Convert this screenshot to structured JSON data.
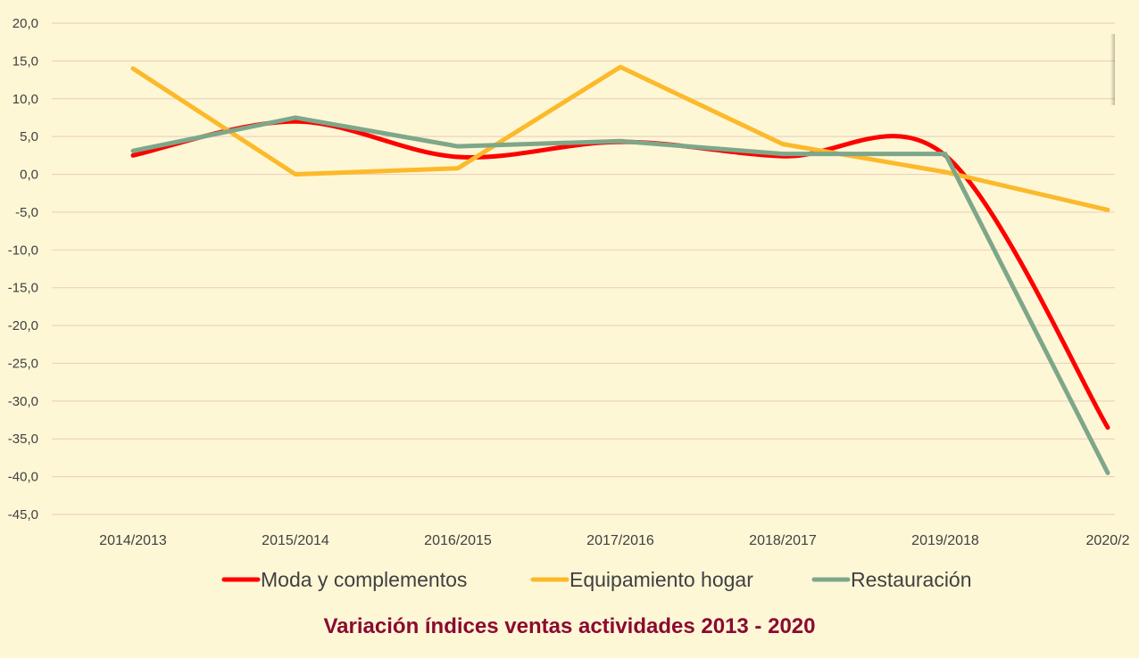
{
  "chart_data": {
    "type": "line",
    "title": "Variación índices ventas actividades 2013 - 2020",
    "categories": [
      "2014/2013",
      "2015/2014",
      "2016/2015",
      "2017/2016",
      "2018/2017",
      "2019/2018",
      "2020/2"
    ],
    "ylim": [
      -45,
      20
    ],
    "y_ticks": [
      "20,0",
      "15,0",
      "10,0",
      "5,0",
      "0,0",
      "-5,0",
      "-10,0",
      "-15,0",
      "-20,0",
      "-25,0",
      "-30,0",
      "-35,0",
      "-40,0",
      "-45,0"
    ],
    "grid": true,
    "legend_position": "bottom",
    "series": [
      {
        "name": "Moda y complementos",
        "color": "#ff0000",
        "smooth": true,
        "values": [
          2.5,
          7.0,
          2.3,
          4.3,
          2.4,
          2.5,
          -33.5
        ]
      },
      {
        "name": "Equipamiento hogar",
        "color": "#fcb92a",
        "smooth": false,
        "values": [
          14.0,
          0.0,
          0.8,
          14.2,
          4.0,
          0.3,
          -4.7
        ]
      },
      {
        "name": "Restauración",
        "color": "#7ea78a",
        "smooth": false,
        "values": [
          3.1,
          7.5,
          3.7,
          4.4,
          2.7,
          2.7,
          -39.5
        ]
      }
    ]
  }
}
